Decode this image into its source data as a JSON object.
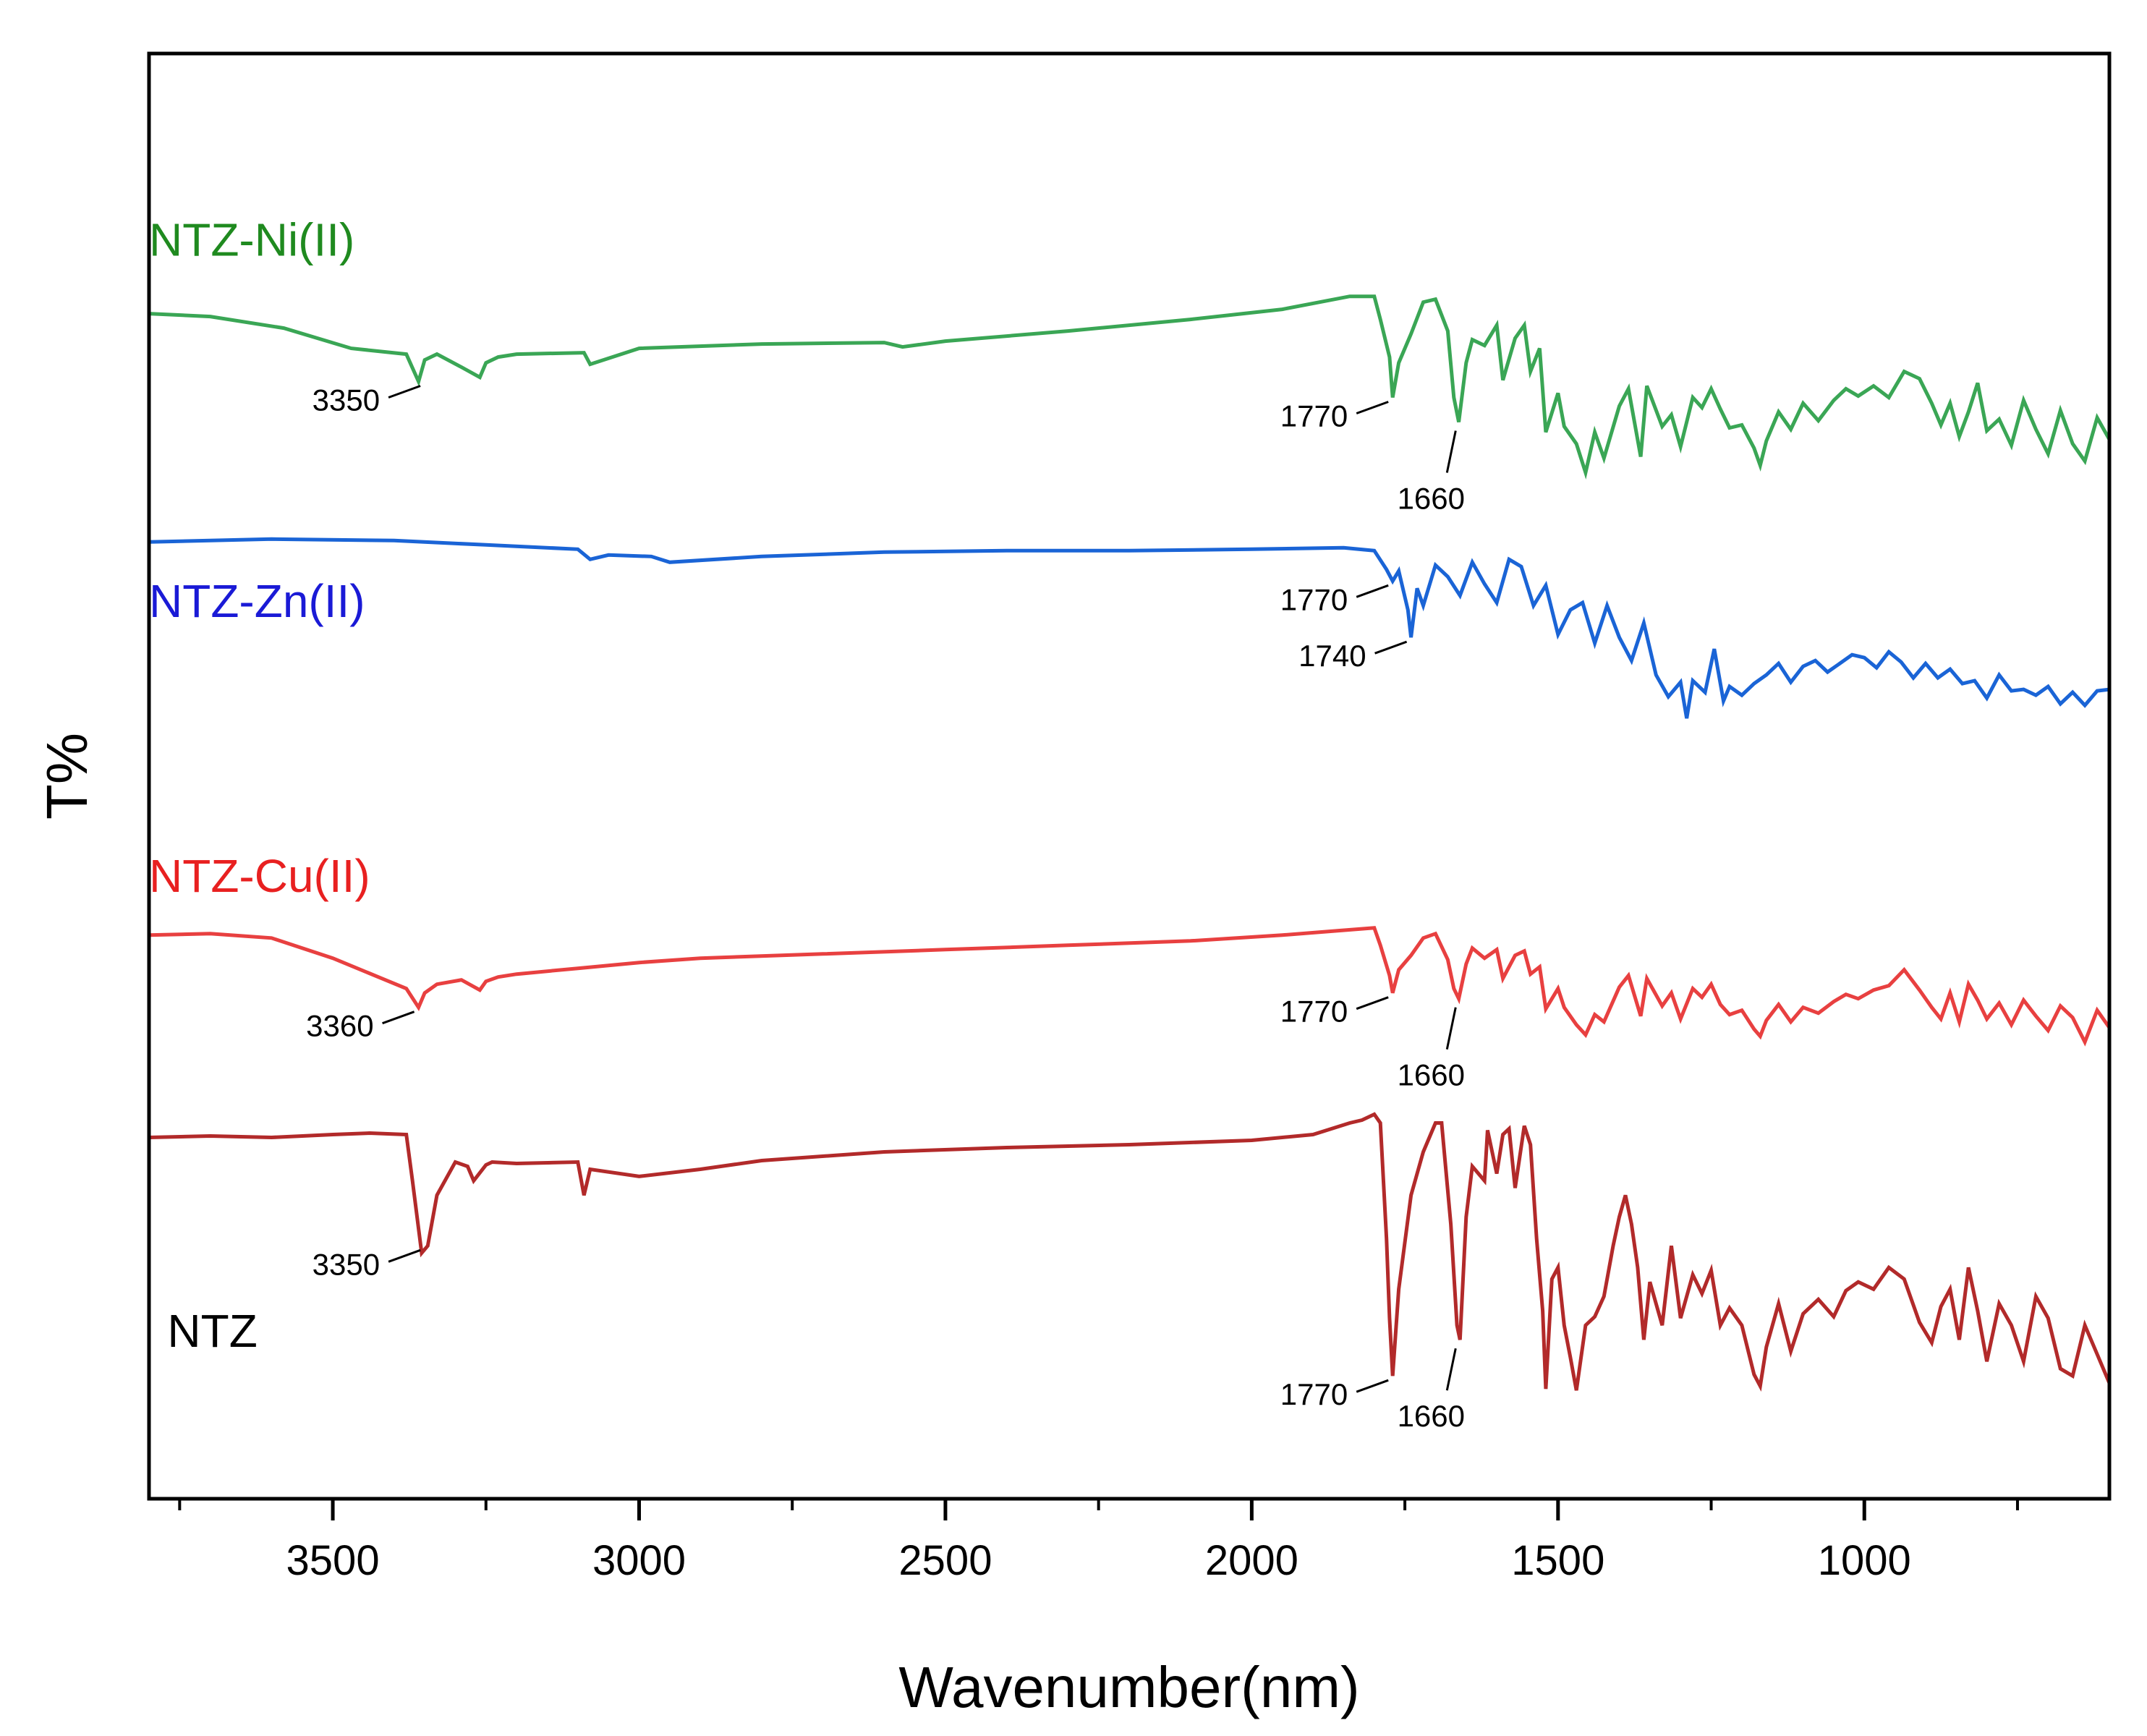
{
  "chart_data": {
    "type": "line",
    "title": "",
    "xlabel": "Wavenumber(nm)",
    "ylabel": "T%",
    "xlim": [
      3800,
      600
    ],
    "ylim": [
      0,
      100
    ],
    "x_reversed": true,
    "grid": false,
    "y_ticks_shown": false,
    "x_ticks": [
      3500,
      3000,
      2500,
      2000,
      1500,
      1000
    ],
    "x_tick_labels": [
      "3500",
      "3000",
      "2500",
      "2000",
      "1500",
      "1000"
    ],
    "x_minor_ticks": [
      3750,
      3250,
      2750,
      2250,
      1750,
      1250,
      750
    ],
    "series": [
      {
        "name": "NTZ-Ni(II)",
        "color": "#3aa655",
        "label_color": "#1f8a1f",
        "label_anchor": [
          3800,
          86.0
        ],
        "x": [
          3800,
          3700,
          3580,
          3470,
          3380,
          3360,
          3350,
          3330,
          3290,
          3260,
          3250,
          3230,
          3200,
          3090,
          3080,
          3000,
          2800,
          2600,
          2570,
          2500,
          2300,
          2100,
          1950,
          1840,
          1800,
          1790,
          1775,
          1770,
          1760,
          1740,
          1720,
          1700,
          1680,
          1670,
          1662,
          1650,
          1640,
          1620,
          1600,
          1590,
          1570,
          1555,
          1545,
          1530,
          1520,
          1500,
          1490,
          1470,
          1455,
          1440,
          1425,
          1400,
          1385,
          1365,
          1355,
          1330,
          1315,
          1300,
          1280,
          1265,
          1250,
          1235,
          1220,
          1200,
          1180,
          1170,
          1160,
          1140,
          1120,
          1100,
          1075,
          1050,
          1030,
          1010,
          985,
          960,
          935,
          910,
          890,
          875,
          860,
          845,
          830,
          815,
          800,
          780,
          760,
          740,
          720,
          700,
          680,
          660,
          640,
          620,
          600
        ],
        "values": [
          82.0,
          81.8,
          81.0,
          79.6,
          79.2,
          77.3,
          78.8,
          79.2,
          78.3,
          77.6,
          78.6,
          79.0,
          79.2,
          79.3,
          78.5,
          79.6,
          79.9,
          80.0,
          79.7,
          80.1,
          80.8,
          81.6,
          82.3,
          83.2,
          83.2,
          81.6,
          79.0,
          76.2,
          78.6,
          80.6,
          82.8,
          83.0,
          80.8,
          76.2,
          74.5,
          78.6,
          80.2,
          79.8,
          81.2,
          77.4,
          80.3,
          81.2,
          78.0,
          79.6,
          73.8,
          76.5,
          74.2,
          73.0,
          71.0,
          73.8,
          72.0,
          75.6,
          76.8,
          72.1,
          77.0,
          74.2,
          75.0,
          72.8,
          76.2,
          75.5,
          76.8,
          75.4,
          74.1,
          74.3,
          72.7,
          71.5,
          73.2,
          75.2,
          74.0,
          75.8,
          74.6,
          76.0,
          76.8,
          76.3,
          77.0,
          76.2,
          78.0,
          77.5,
          75.8,
          74.3,
          75.8,
          73.5,
          75.2,
          77.2,
          73.9,
          74.7,
          72.9,
          76.0,
          74.0,
          72.3,
          75.3,
          73.0,
          71.8,
          74.8,
          73.3
        ]
      },
      {
        "name": "NTZ-Zn(II)",
        "color": "#1a64d6",
        "label_color": "#1a1ad6",
        "label_anchor": [
          3800,
          61.0
        ],
        "x": [
          3800,
          3600,
          3400,
          3250,
          3100,
          3080,
          3050,
          2980,
          2950,
          2800,
          2600,
          2400,
          2200,
          2000,
          1850,
          1800,
          1780,
          1770,
          1760,
          1745,
          1740,
          1730,
          1720,
          1700,
          1680,
          1660,
          1640,
          1620,
          1600,
          1580,
          1560,
          1540,
          1520,
          1500,
          1480,
          1460,
          1440,
          1420,
          1400,
          1380,
          1360,
          1340,
          1320,
          1300,
          1290,
          1280,
          1260,
          1245,
          1230,
          1220,
          1200,
          1180,
          1160,
          1140,
          1120,
          1100,
          1080,
          1060,
          1040,
          1020,
          1000,
          980,
          960,
          940,
          920,
          900,
          880,
          860,
          840,
          820,
          800,
          780,
          760,
          740,
          720,
          700,
          680,
          660,
          640,
          620,
          600
        ],
        "values": [
          66.2,
          66.4,
          66.3,
          66.0,
          65.7,
          65.0,
          65.3,
          65.2,
          64.8,
          65.2,
          65.5,
          65.6,
          65.6,
          65.7,
          65.8,
          65.6,
          64.3,
          63.5,
          64.2,
          61.5,
          59.6,
          63.0,
          61.8,
          64.6,
          63.8,
          62.5,
          64.8,
          63.3,
          62.0,
          65.0,
          64.5,
          61.8,
          63.2,
          59.8,
          61.5,
          62.0,
          59.2,
          61.8,
          59.6,
          58.0,
          60.6,
          57.0,
          55.5,
          56.5,
          54.0,
          56.6,
          55.8,
          58.8,
          55.2,
          56.2,
          55.6,
          56.4,
          57.0,
          57.8,
          56.5,
          57.6,
          58.0,
          57.2,
          57.8,
          58.4,
          58.2,
          57.5,
          58.6,
          57.9,
          56.8,
          57.8,
          56.8,
          57.4,
          56.4,
          56.6,
          55.4,
          57.0,
          55.9,
          56.0,
          55.6,
          56.2,
          55.0,
          55.8,
          54.9,
          55.9,
          56.0
        ]
      },
      {
        "name": "NTZ-Cu(II)",
        "color": "#e84040",
        "label_color": "#e82020",
        "label_anchor": [
          3800,
          42.0
        ],
        "x": [
          3800,
          3700,
          3600,
          3500,
          3420,
          3380,
          3360,
          3350,
          3330,
          3290,
          3260,
          3250,
          3230,
          3200,
          3100,
          3000,
          2900,
          2700,
          2500,
          2300,
          2100,
          1950,
          1860,
          1800,
          1790,
          1775,
          1770,
          1760,
          1740,
          1720,
          1700,
          1680,
          1670,
          1662,
          1650,
          1640,
          1620,
          1600,
          1590,
          1570,
          1555,
          1545,
          1530,
          1520,
          1500,
          1490,
          1470,
          1455,
          1440,
          1425,
          1400,
          1385,
          1365,
          1355,
          1330,
          1315,
          1300,
          1280,
          1265,
          1250,
          1235,
          1220,
          1200,
          1180,
          1170,
          1160,
          1140,
          1120,
          1100,
          1075,
          1050,
          1030,
          1010,
          985,
          960,
          935,
          910,
          890,
          875,
          860,
          845,
          830,
          815,
          800,
          780,
          760,
          740,
          720,
          700,
          680,
          660,
          640,
          620,
          600
        ],
        "values": [
          39.0,
          39.1,
          38.8,
          37.4,
          36.0,
          35.3,
          34.0,
          35.0,
          35.6,
          35.9,
          35.2,
          35.8,
          36.1,
          36.3,
          36.7,
          37.1,
          37.4,
          37.7,
          38.0,
          38.3,
          38.6,
          39.0,
          39.3,
          39.5,
          38.3,
          36.2,
          35.0,
          36.6,
          37.6,
          38.8,
          39.1,
          37.3,
          35.3,
          34.6,
          37.0,
          38.1,
          37.4,
          38.0,
          36.0,
          37.6,
          37.9,
          36.3,
          36.8,
          33.9,
          35.3,
          34.0,
          32.8,
          32.1,
          33.5,
          33.0,
          35.4,
          36.2,
          33.4,
          36.0,
          34.1,
          35.0,
          33.2,
          35.3,
          34.7,
          35.6,
          34.2,
          33.5,
          33.8,
          32.5,
          32.0,
          33.1,
          34.2,
          33.0,
          34.0,
          33.6,
          34.4,
          34.9,
          34.6,
          35.2,
          35.5,
          36.6,
          35.2,
          34.0,
          33.2,
          35.0,
          33.0,
          35.6,
          34.5,
          33.2,
          34.3,
          32.8,
          34.5,
          33.4,
          32.4,
          34.1,
          33.3,
          31.6,
          33.8,
          32.6
        ]
      },
      {
        "name": "NTZ",
        "color": "#b22a2a",
        "label_color": "#000000",
        "label_anchor": [
          3770,
          10.5
        ],
        "x": [
          3800,
          3700,
          3600,
          3500,
          3440,
          3380,
          3370,
          3355,
          3345,
          3330,
          3300,
          3280,
          3270,
          3250,
          3240,
          3200,
          3100,
          3090,
          3080,
          3000,
          2900,
          2800,
          2600,
          2400,
          2200,
          2000,
          1900,
          1840,
          1820,
          1800,
          1790,
          1780,
          1775,
          1770,
          1760,
          1740,
          1720,
          1700,
          1690,
          1675,
          1665,
          1660,
          1650,
          1640,
          1620,
          1615,
          1600,
          1590,
          1580,
          1570,
          1555,
          1545,
          1535,
          1525,
          1520,
          1510,
          1500,
          1490,
          1480,
          1470,
          1455,
          1440,
          1425,
          1410,
          1400,
          1390,
          1380,
          1370,
          1360,
          1350,
          1330,
          1315,
          1300,
          1280,
          1265,
          1250,
          1235,
          1220,
          1200,
          1180,
          1170,
          1160,
          1140,
          1120,
          1100,
          1075,
          1050,
          1030,
          1010,
          985,
          960,
          935,
          910,
          890,
          875,
          860,
          845,
          830,
          815,
          800,
          780,
          760,
          740,
          720,
          700,
          680,
          660,
          640,
          620,
          600
        ],
        "values": [
          25.0,
          25.1,
          25.0,
          25.2,
          25.3,
          25.2,
          22.0,
          17.0,
          17.5,
          21.0,
          23.3,
          23.0,
          22.0,
          23.1,
          23.3,
          23.2,
          23.3,
          21.0,
          22.8,
          22.3,
          22.8,
          23.4,
          24.0,
          24.3,
          24.5,
          24.8,
          25.2,
          26.0,
          26.2,
          26.6,
          26.0,
          18.0,
          12.5,
          8.5,
          14.5,
          21.0,
          24.0,
          26.0,
          26.0,
          19.0,
          12.0,
          11.0,
          19.5,
          23.0,
          22.0,
          25.5,
          22.5,
          25.2,
          25.6,
          21.5,
          25.8,
          24.5,
          18.0,
          13.0,
          7.6,
          15.2,
          16.0,
          12.0,
          9.8,
          7.5,
          12.0,
          12.6,
          14.0,
          17.5,
          19.5,
          21.0,
          19.0,
          16.0,
          11.0,
          15.0,
          12.0,
          17.5,
          12.5,
          15.5,
          14.2,
          15.8,
          12.0,
          13.2,
          12.0,
          8.6,
          7.8,
          10.5,
          13.5,
          10.2,
          12.8,
          13.8,
          12.6,
          14.4,
          15.0,
          14.5,
          16.0,
          15.2,
          12.2,
          10.8,
          13.3,
          14.5,
          11.0,
          16.0,
          13.0,
          9.5,
          13.5,
          12.0,
          9.5,
          14.0,
          12.5,
          9.0,
          8.5,
          12.0,
          10.0,
          8.0
        ]
      }
    ],
    "annotations": [
      {
        "series": "NTZ-Ni(II)",
        "text": "3350",
        "x": 3350,
        "y": 77.3,
        "side": "left"
      },
      {
        "series": "NTZ-Ni(II)",
        "text": "1770",
        "x": 1770,
        "y": 76.2,
        "side": "left"
      },
      {
        "series": "NTZ-Ni(II)",
        "text": "1660",
        "x": 1660,
        "y": 74.5,
        "side": "below"
      },
      {
        "series": "NTZ-Zn(II)",
        "text": "1770",
        "x": 1770,
        "y": 63.5,
        "side": "left"
      },
      {
        "series": "NTZ-Zn(II)",
        "text": "1740",
        "x": 1740,
        "y": 59.6,
        "side": "left"
      },
      {
        "series": "NTZ-Cu(II)",
        "text": "3360",
        "x": 3360,
        "y": 34.0,
        "side": "left"
      },
      {
        "series": "NTZ-Cu(II)",
        "text": "1770",
        "x": 1770,
        "y": 35.0,
        "side": "left"
      },
      {
        "series": "NTZ-Cu(II)",
        "text": "1660",
        "x": 1660,
        "y": 34.6,
        "side": "below"
      },
      {
        "series": "NTZ",
        "text": "3350",
        "x": 3350,
        "y": 17.5,
        "side": "left"
      },
      {
        "series": "NTZ",
        "text": "1770",
        "x": 1770,
        "y": 8.5,
        "side": "left"
      },
      {
        "series": "NTZ",
        "text": "1660",
        "x": 1660,
        "y": 11.0,
        "side": "below"
      }
    ]
  }
}
